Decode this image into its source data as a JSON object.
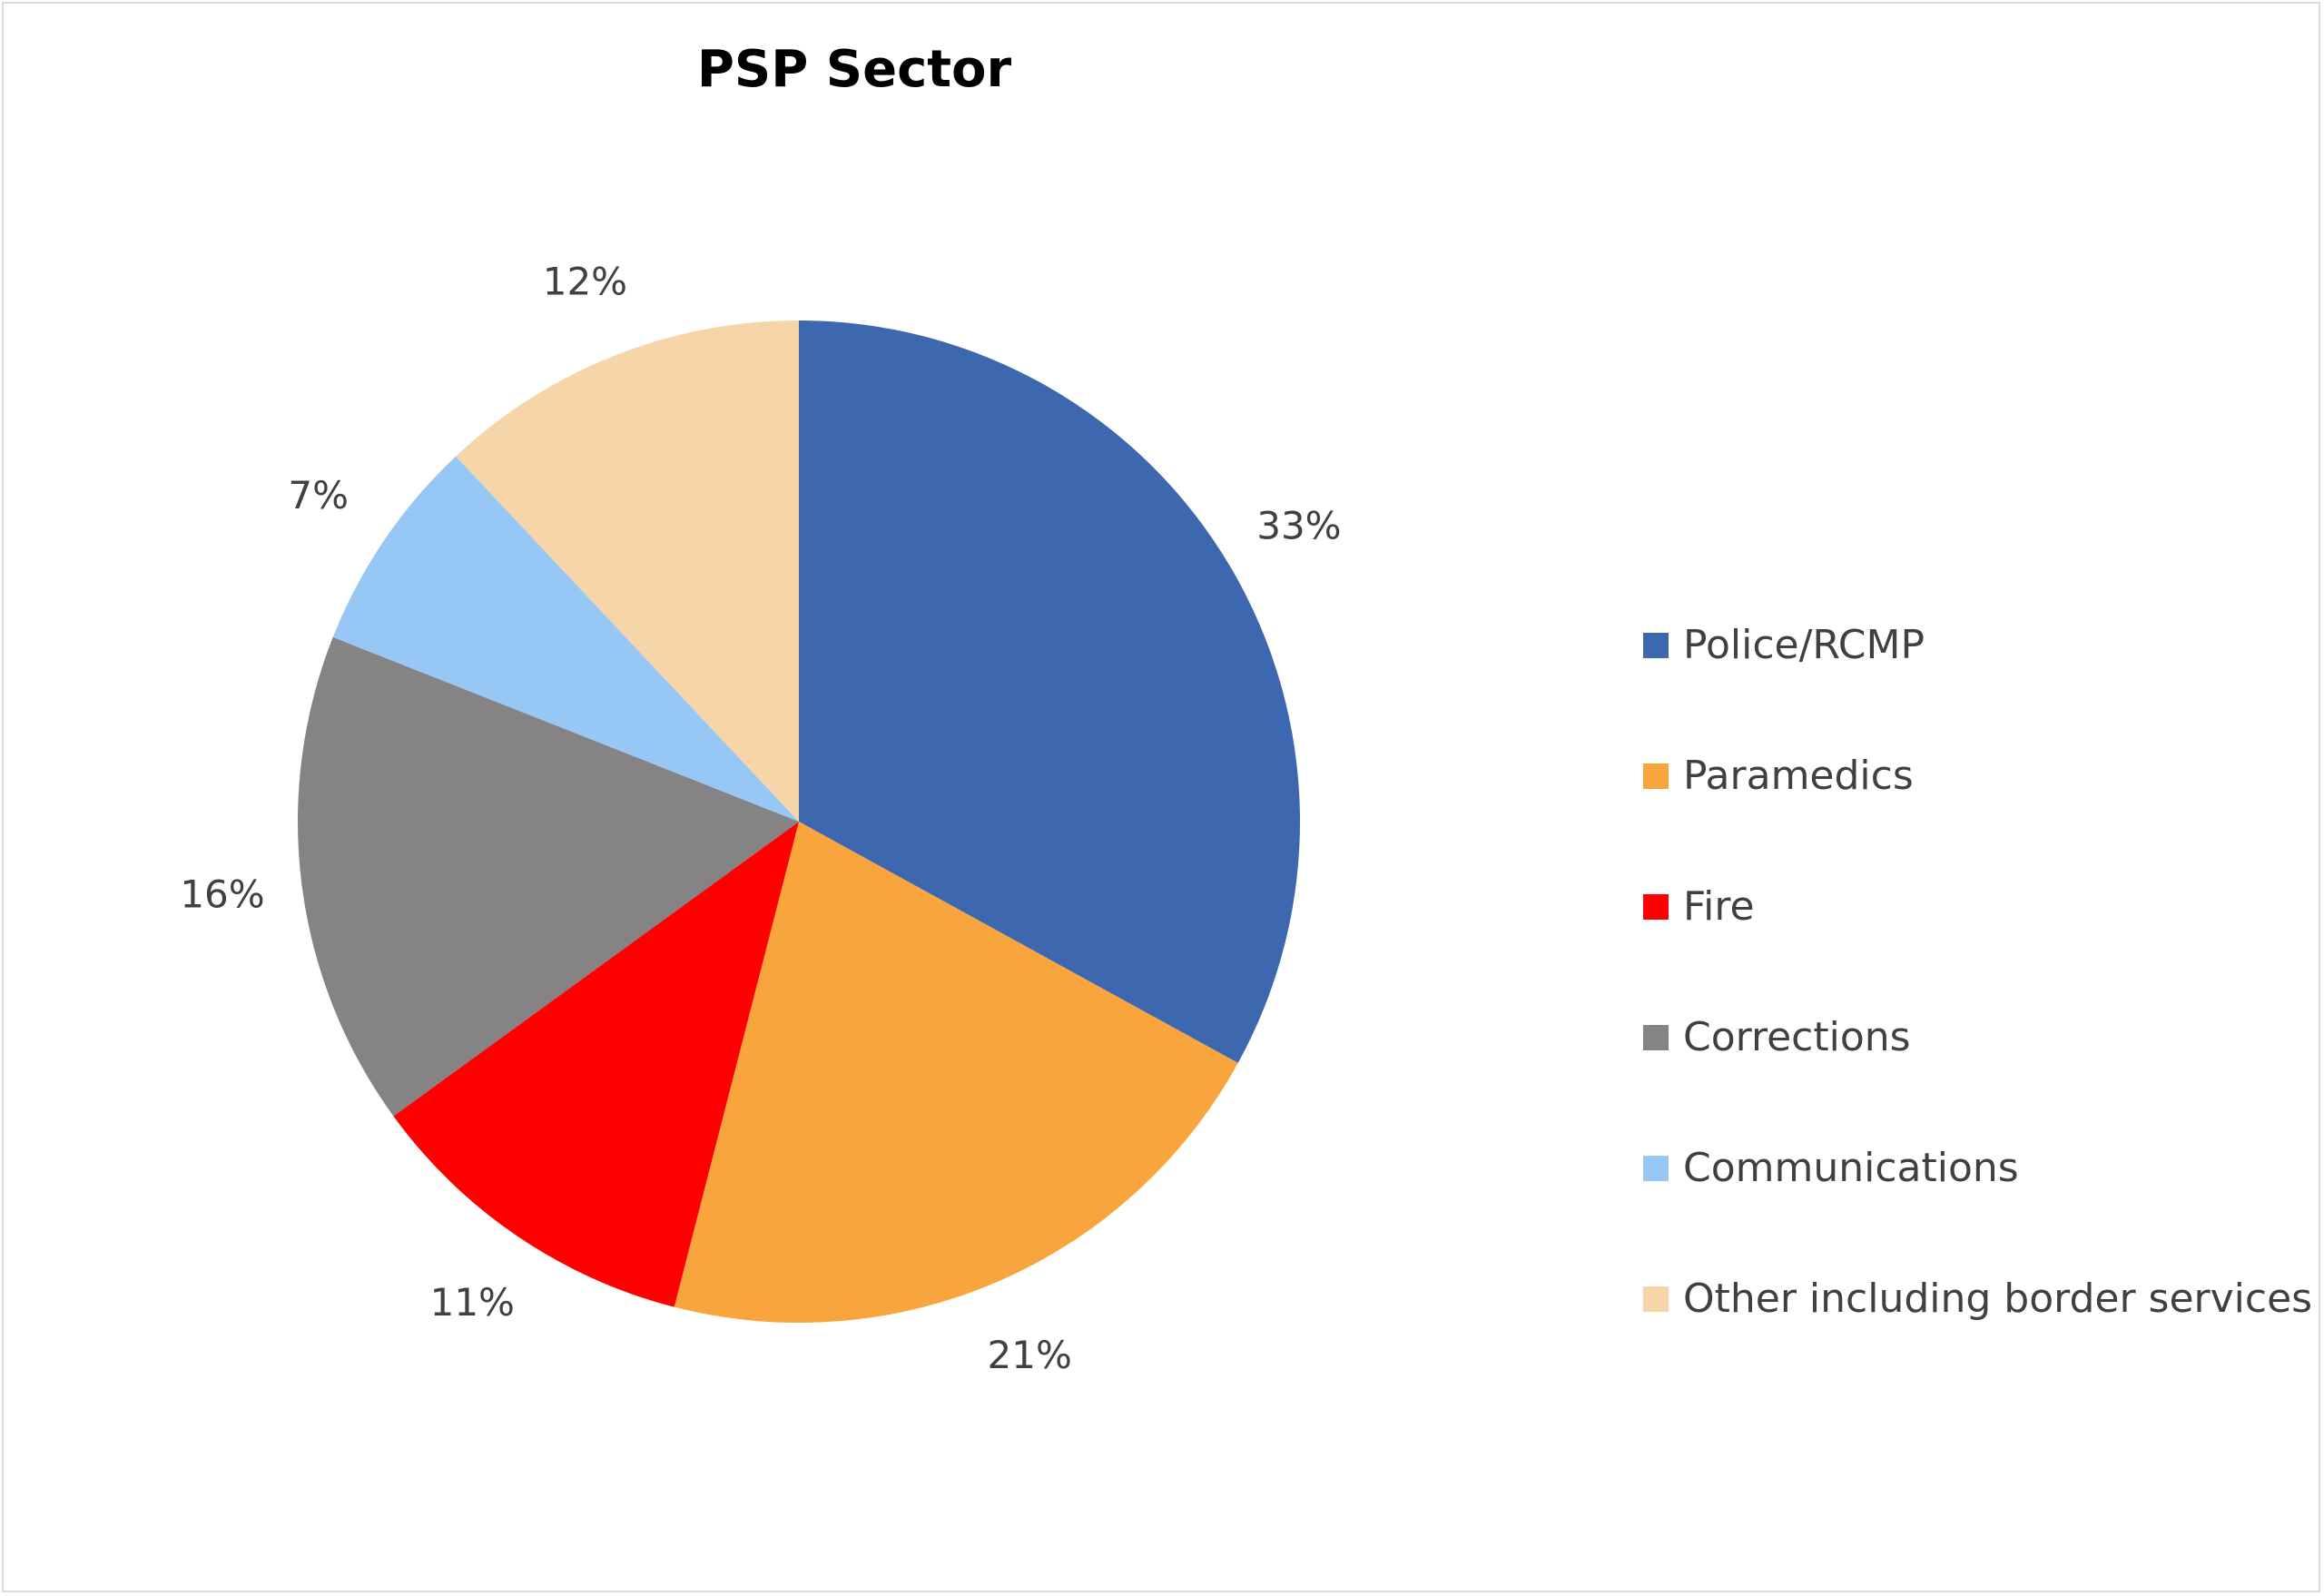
{
  "chart_data": {
    "type": "pie",
    "title": "PSP Sector",
    "categories": [
      "Police/RCMP",
      "Paramedics",
      "Fire",
      "Corrections",
      "Communications",
      "Other including border services"
    ],
    "values": [
      33,
      21,
      11,
      16,
      7,
      12
    ],
    "data_labels": [
      "33%",
      "21%",
      "11%",
      "16%",
      "7%",
      "12%"
    ],
    "colors": [
      "#3D67AE",
      "#F9A53E",
      "#FF0000",
      "#858383",
      "#97C7F5",
      "#F6D6A9"
    ],
    "legend_position": "right",
    "start_angle": "top",
    "direction": "clockwise"
  }
}
